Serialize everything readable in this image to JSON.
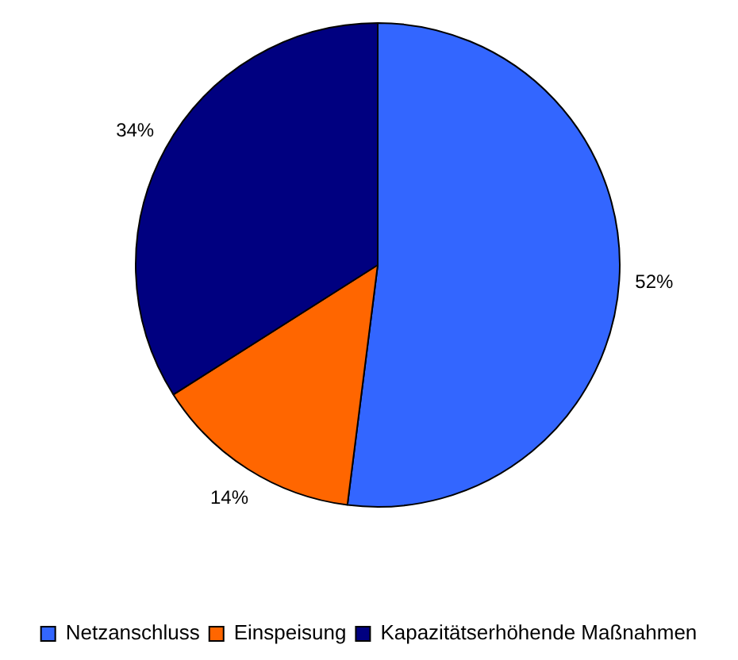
{
  "chart_data": {
    "type": "pie",
    "categories": [
      "Netzanschluss",
      "Einspeisung",
      "Kapazitätserhöhende Maßnahmen"
    ],
    "values": [
      52,
      14,
      34
    ],
    "colors": [
      "#3366ff",
      "#ff6600",
      "#000080"
    ],
    "value_labels": [
      "52%",
      "14%",
      "34%"
    ],
    "legend": "bottom"
  }
}
